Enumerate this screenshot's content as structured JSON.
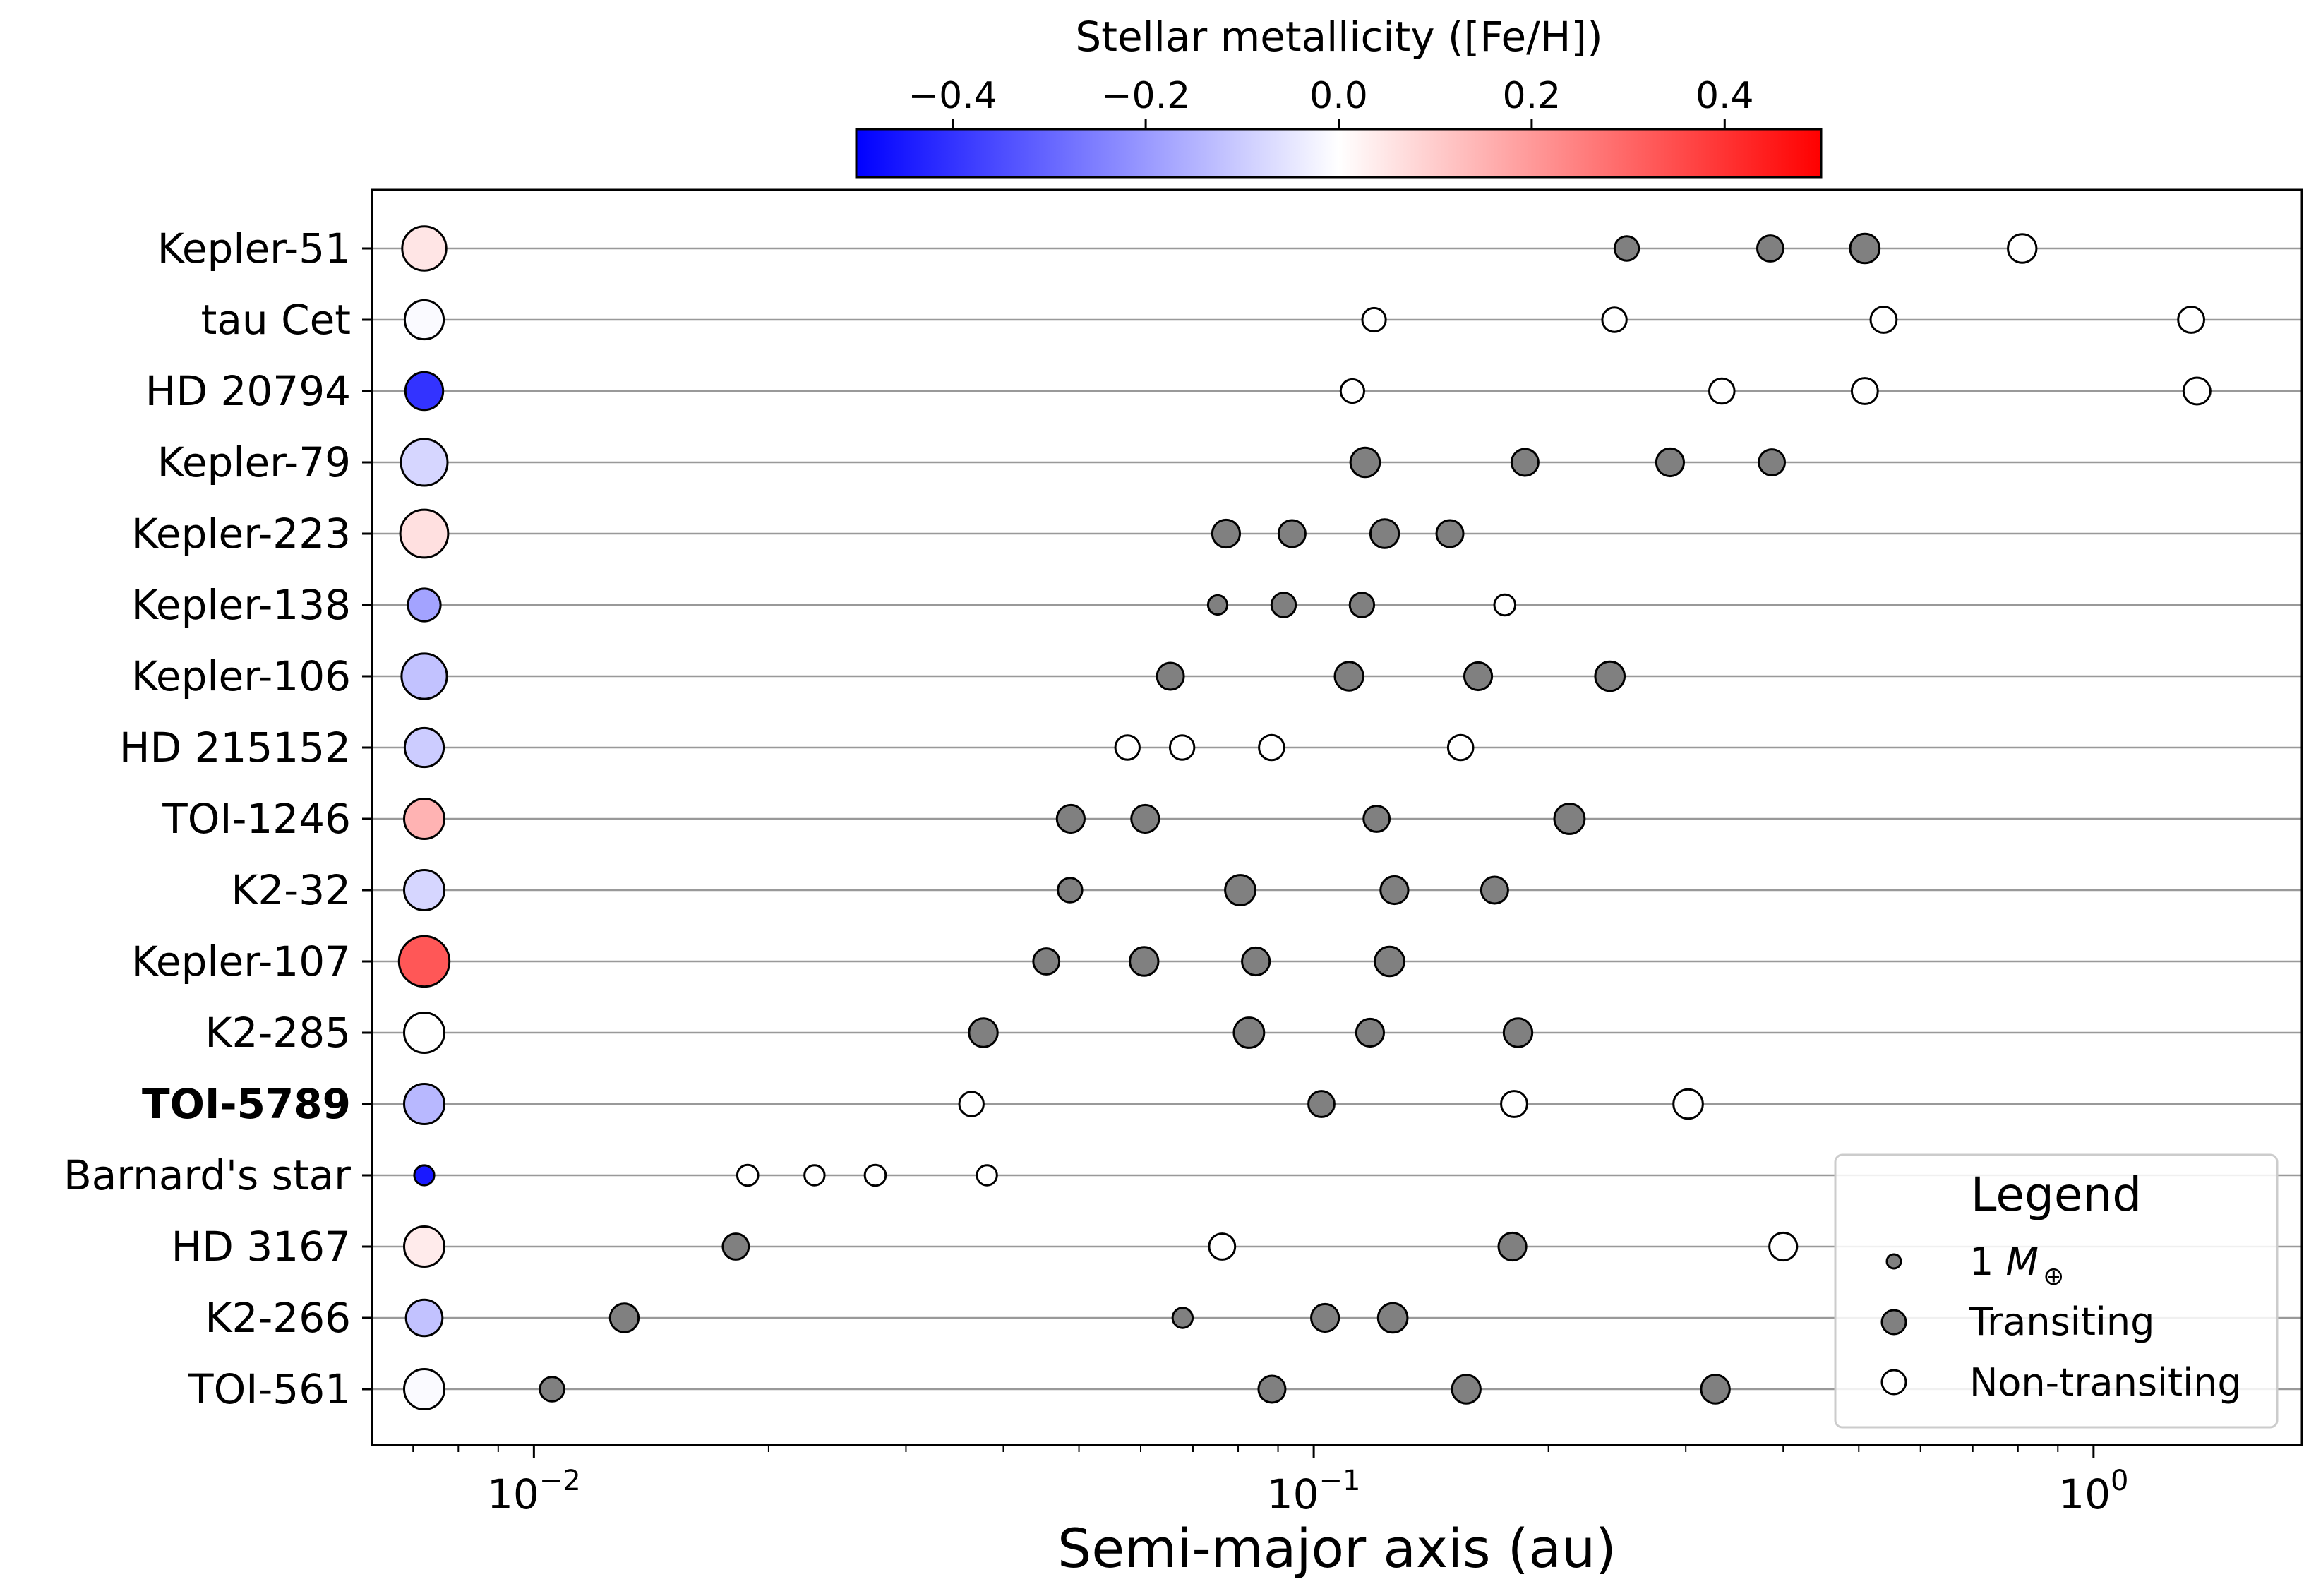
{
  "chart_data": {
    "type": "scatter",
    "title": "",
    "xlabel": "Semi-major axis (au)",
    "ylabel": "",
    "xscale": "log",
    "xlim": [
      0.0062,
      1.85
    ],
    "x_ticks": [
      {
        "value": 0.01,
        "base": "10",
        "exp": "−2"
      },
      {
        "value": 0.1,
        "base": "10",
        "exp": "−1"
      },
      {
        "value": 1,
        "base": "10",
        "exp": "0"
      }
    ],
    "grid": "horizontal lines at each system",
    "colorbar": {
      "label": "Stellar metallicity ([Fe/H])",
      "range": [
        -0.5,
        0.5
      ],
      "colormap": "bwr",
      "ticks": [
        {
          "value": -0.4,
          "label": "−0.4"
        },
        {
          "value": -0.2,
          "label": "−0.2"
        },
        {
          "value": 0.0,
          "label": "0.0"
        },
        {
          "value": 0.2,
          "label": "0.2"
        },
        {
          "value": 0.4,
          "label": "0.4"
        }
      ]
    },
    "colors": {
      "transiting": "#808080",
      "non_transiting": "#ffffff",
      "edge": "#000000",
      "grid": "#999999"
    },
    "legend": {
      "title": "Legend",
      "position": "lower right",
      "mass_label": "1 ",
      "mass_symbol": "M",
      "mass_subscript": "⊕",
      "transiting_label": "Transiting",
      "non_transiting_label": "Non-transiting"
    },
    "systems": [
      {
        "name": "Kepler-51",
        "bold": false,
        "star_feh": 0.05,
        "star_size": 1.4,
        "planets": [
          {
            "a": 0.252,
            "m": 0.6,
            "t": true
          },
          {
            "a": 0.385,
            "m": 0.7,
            "t": true
          },
          {
            "a": 0.509,
            "m": 0.9,
            "t": true
          },
          {
            "a": 0.81,
            "m": 0.85,
            "t": false
          }
        ]
      },
      {
        "name": "tau Cet",
        "bold": false,
        "star_feh": -0.01,
        "star_size": 1.2,
        "planets": [
          {
            "a": 0.1195,
            "m": 0.55,
            "t": false
          },
          {
            "a": 0.243,
            "m": 0.6,
            "t": false
          },
          {
            "a": 0.538,
            "m": 0.7,
            "t": false
          },
          {
            "a": 1.334,
            "m": 0.7,
            "t": false
          }
        ]
      },
      {
        "name": "HD 20794",
        "bold": false,
        "star_feh": -0.4,
        "star_size": 1.15,
        "planets": [
          {
            "a": 0.1121,
            "m": 0.55,
            "t": false
          },
          {
            "a": 0.3337,
            "m": 0.65,
            "t": false
          },
          {
            "a": 0.509,
            "m": 0.7,
            "t": false
          },
          {
            "a": 1.357,
            "m": 0.75,
            "t": false
          }
        ]
      },
      {
        "name": "Kepler-79",
        "bold": false,
        "star_feh": -0.08,
        "star_size": 1.5,
        "planets": [
          {
            "a": 0.1164,
            "m": 0.9,
            "t": true
          },
          {
            "a": 0.1866,
            "m": 0.75,
            "t": true
          },
          {
            "a": 0.2864,
            "m": 0.8,
            "t": true
          },
          {
            "a": 0.3868,
            "m": 0.7,
            "t": true
          }
        ]
      },
      {
        "name": "Kepler-223",
        "bold": false,
        "star_feh": 0.06,
        "star_size": 1.55,
        "planets": [
          {
            "a": 0.0772,
            "m": 0.8,
            "t": true
          },
          {
            "a": 0.0938,
            "m": 0.75,
            "t": true
          },
          {
            "a": 0.1233,
            "m": 0.85,
            "t": true
          },
          {
            "a": 0.1495,
            "m": 0.75,
            "t": true
          }
        ]
      },
      {
        "name": "Kepler-138",
        "bold": false,
        "star_feh": -0.18,
        "star_size": 0.95,
        "planets": [
          {
            "a": 0.0753,
            "m": 0.3,
            "t": true
          },
          {
            "a": 0.0915,
            "m": 0.6,
            "t": true
          },
          {
            "a": 0.1153,
            "m": 0.6,
            "t": true
          },
          {
            "a": 0.1758,
            "m": 0.4,
            "t": false
          }
        ]
      },
      {
        "name": "Kepler-106",
        "bold": false,
        "star_feh": -0.12,
        "star_size": 1.45,
        "planets": [
          {
            "a": 0.0655,
            "m": 0.75,
            "t": true
          },
          {
            "a": 0.111,
            "m": 0.85,
            "t": true
          },
          {
            "a": 0.1625,
            "m": 0.8,
            "t": true
          },
          {
            "a": 0.2398,
            "m": 0.9,
            "t": true
          }
        ]
      },
      {
        "name": "HD 215152",
        "bold": false,
        "star_feh": -0.1,
        "star_size": 1.2,
        "planets": [
          {
            "a": 0.0577,
            "m": 0.6,
            "t": false
          },
          {
            "a": 0.0678,
            "m": 0.6,
            "t": false
          },
          {
            "a": 0.0883,
            "m": 0.65,
            "t": false
          },
          {
            "a": 0.1543,
            "m": 0.65,
            "t": false
          }
        ]
      },
      {
        "name": "TOI-1246",
        "bold": false,
        "star_feh": 0.15,
        "star_size": 1.25,
        "planets": [
          {
            "a": 0.0488,
            "m": 0.8,
            "t": true
          },
          {
            "a": 0.0608,
            "m": 0.8,
            "t": true
          },
          {
            "a": 0.1204,
            "m": 0.7,
            "t": true
          },
          {
            "a": 0.2128,
            "m": 0.95,
            "t": true
          }
        ]
      },
      {
        "name": "K2-32",
        "bold": false,
        "star_feh": -0.08,
        "star_size": 1.25,
        "planets": [
          {
            "a": 0.0487,
            "m": 0.6,
            "t": true
          },
          {
            "a": 0.0805,
            "m": 0.95,
            "t": true
          },
          {
            "a": 0.1269,
            "m": 0.8,
            "t": true
          },
          {
            "a": 0.1706,
            "m": 0.75,
            "t": true
          }
        ]
      },
      {
        "name": "Kepler-107",
        "bold": false,
        "star_feh": 0.33,
        "star_size": 1.65,
        "planets": [
          {
            "a": 0.0454,
            "m": 0.7,
            "t": true
          },
          {
            "a": 0.0606,
            "m": 0.85,
            "t": true
          },
          {
            "a": 0.0843,
            "m": 0.8,
            "t": true
          },
          {
            "a": 0.1251,
            "m": 0.9,
            "t": true
          }
        ]
      },
      {
        "name": "K2-285",
        "bold": false,
        "star_feh": 0.0,
        "star_size": 1.25,
        "planets": [
          {
            "a": 0.0377,
            "m": 0.85,
            "t": true
          },
          {
            "a": 0.0826,
            "m": 0.95,
            "t": true
          },
          {
            "a": 0.1181,
            "m": 0.8,
            "t": true
          },
          {
            "a": 0.1828,
            "m": 0.85,
            "t": true
          }
        ]
      },
      {
        "name": "TOI-5789",
        "bold": true,
        "star_feh": -0.14,
        "star_size": 1.25,
        "planets": [
          {
            "a": 0.0364,
            "m": 0.6,
            "t": false
          },
          {
            "a": 0.1023,
            "m": 0.7,
            "t": true
          },
          {
            "a": 0.1807,
            "m": 0.7,
            "t": false
          },
          {
            "a": 0.3021,
            "m": 0.9,
            "t": false
          }
        ]
      },
      {
        "name": "Barnard's star",
        "bold": false,
        "star_feh": -0.45,
        "star_size": 0.45,
        "planets": [
          {
            "a": 0.0188,
            "m": 0.4,
            "t": false
          },
          {
            "a": 0.0229,
            "m": 0.35,
            "t": false
          },
          {
            "a": 0.0274,
            "m": 0.4,
            "t": false
          },
          {
            "a": 0.0381,
            "m": 0.35,
            "t": false
          }
        ]
      },
      {
        "name": "HD 3167",
        "bold": false,
        "star_feh": 0.04,
        "star_size": 1.25,
        "planets": [
          {
            "a": 0.01815,
            "m": 0.7,
            "t": true
          },
          {
            "a": 0.0763,
            "m": 0.7,
            "t": false
          },
          {
            "a": 0.1798,
            "m": 0.8,
            "t": true
          },
          {
            "a": 0.4,
            "m": 0.8,
            "t": false
          }
        ]
      },
      {
        "name": "K2-266",
        "bold": false,
        "star_feh": -0.12,
        "star_size": 1.1,
        "planets": [
          {
            "a": 0.01306,
            "m": 0.85,
            "t": true
          },
          {
            "a": 0.0679,
            "m": 0.35,
            "t": true
          },
          {
            "a": 0.1034,
            "m": 0.8,
            "t": true
          },
          {
            "a": 0.1263,
            "m": 0.9,
            "t": true
          }
        ]
      },
      {
        "name": "TOI-561",
        "bold": false,
        "star_feh": -0.01,
        "star_size": 1.25,
        "planets": [
          {
            "a": 0.01055,
            "m": 0.6,
            "t": true
          },
          {
            "a": 0.0884,
            "m": 0.75,
            "t": true
          },
          {
            "a": 0.1569,
            "m": 0.85,
            "t": true
          },
          {
            "a": 0.3274,
            "m": 0.85,
            "t": true
          }
        ]
      }
    ]
  }
}
